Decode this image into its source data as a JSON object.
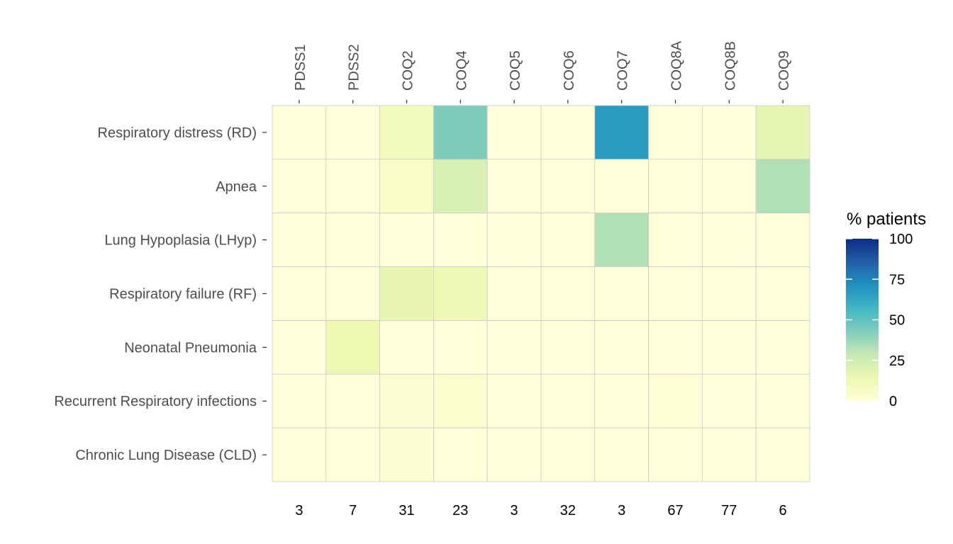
{
  "chart_data": {
    "type": "heatmap",
    "x_categories": [
      "PDSS1",
      "PDSS2",
      "COQ2",
      "COQ4",
      "COQ5",
      "COQ6",
      "COQ7",
      "COQ8A",
      "COQ8B",
      "COQ9"
    ],
    "y_categories": [
      "Respiratory distress (RD)",
      "Apnea",
      "Lung Hypoplasia (LHyp)",
      "Respiratory failure (RF)",
      "Neonatal Pneumonia",
      "Recurrent Respiratory infections",
      "Chronic Lung Disease (CLD)"
    ],
    "values": [
      [
        0,
        0,
        10,
        43,
        0,
        0,
        67,
        0,
        0,
        17
      ],
      [
        0,
        0,
        6,
        22,
        0,
        0,
        0,
        0,
        0,
        33
      ],
      [
        0,
        0,
        0,
        0,
        0,
        0,
        33,
        0,
        0,
        0
      ],
      [
        0,
        0,
        16,
        13,
        0,
        0,
        0,
        0,
        0,
        0
      ],
      [
        0,
        14,
        0,
        0,
        0,
        0,
        0,
        0,
        0,
        0
      ],
      [
        0,
        0,
        3,
        4,
        0,
        0,
        0,
        1,
        0,
        0
      ],
      [
        0,
        0,
        3,
        0,
        0,
        0,
        0,
        0,
        0,
        0
      ]
    ],
    "column_counts": [
      "3",
      "7",
      "31",
      "23",
      "3",
      "32",
      "3",
      "67",
      "77",
      "6"
    ],
    "legend": {
      "title": "% patients",
      "ticks": [
        0,
        25,
        50,
        75,
        100
      ],
      "range": [
        0,
        100
      ],
      "placement": "right"
    },
    "colorscale": [
      "#ffffd9",
      "#edf8b1",
      "#c7e9b4",
      "#7fcdbb",
      "#41b6c4",
      "#1d91c0",
      "#225ea8",
      "#0c2c84"
    ],
    "grid_color": "#cccccc"
  }
}
